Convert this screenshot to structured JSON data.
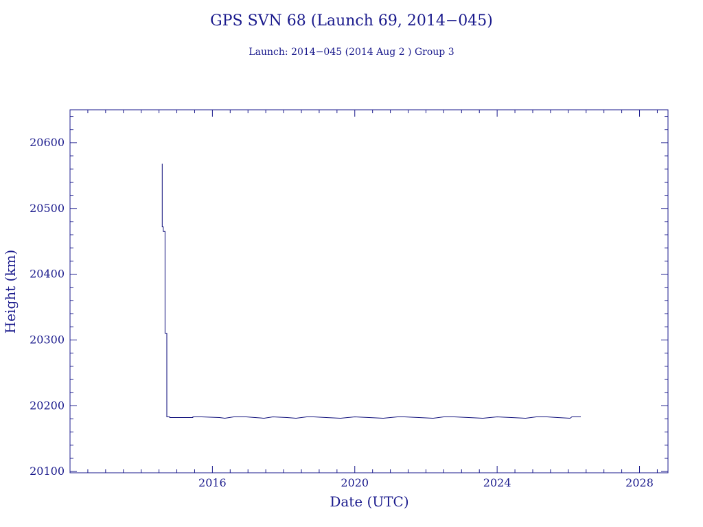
{
  "title": "GPS SVN 68 (Launch 69, 2014−045)",
  "subtitle": "Launch: 2014−045  (2014 Aug  2 )  Group 3",
  "colors": {
    "ink": "#1a1a8c",
    "line": "#0a0a78",
    "background": "#ffffff"
  },
  "chart_data": {
    "type": "line",
    "title": "GPS SVN 68 (Launch 69, 2014−045)",
    "subtitle": "Launch: 2014−045  (2014 Aug  2 )  Group 3",
    "xlabel": "Date (UTC)",
    "ylabel": "Height (km)",
    "xlim": [
      2012.0,
      2028.8
    ],
    "ylim": [
      20098,
      20650
    ],
    "x_ticks": [
      2016,
      2020,
      2024,
      2028
    ],
    "x_tick_labels": [
      "2016",
      "2020",
      "2024",
      "2028"
    ],
    "y_ticks": [
      20100,
      20200,
      20300,
      20400,
      20500,
      20600
    ],
    "y_tick_labels": [
      "20100",
      "20200",
      "20300",
      "20400",
      "20500",
      "20600"
    ],
    "grid": false,
    "legend": false,
    "series": [
      {
        "x": [
          2014.59,
          2014.59,
          2014.62,
          2014.62,
          2014.67,
          2014.67,
          2014.72,
          2014.72,
          2014.8,
          2014.8,
          2015.45,
          2015.45,
          2015.7,
          2016.2,
          2016.35,
          2016.6,
          2016.95,
          2017.2,
          2017.45,
          2017.7,
          2018.1,
          2018.35,
          2018.65,
          2018.85,
          2019.2,
          2019.6,
          2020.0,
          2020.4,
          2020.8,
          2021.2,
          2021.4,
          2021.8,
          2022.2,
          2022.5,
          2022.8,
          2023.2,
          2023.6,
          2024.0,
          2024.4,
          2024.8,
          2025.1,
          2025.4,
          2025.7,
          2026.05,
          2026.1,
          2026.35
        ],
        "y": [
          20568,
          20472,
          20472,
          20465,
          20465,
          20310,
          20310,
          20183,
          20183,
          20182,
          20182,
          20183,
          20183,
          20182,
          20181,
          20183,
          20183,
          20182,
          20181,
          20183,
          20182,
          20181,
          20183,
          20183,
          20182,
          20181,
          20183,
          20182,
          20181,
          20183,
          20183,
          20182,
          20181,
          20183,
          20183,
          20182,
          20181,
          20183,
          20182,
          20181,
          20183,
          20183,
          20182,
          20181,
          20183,
          20183
        ]
      }
    ]
  }
}
